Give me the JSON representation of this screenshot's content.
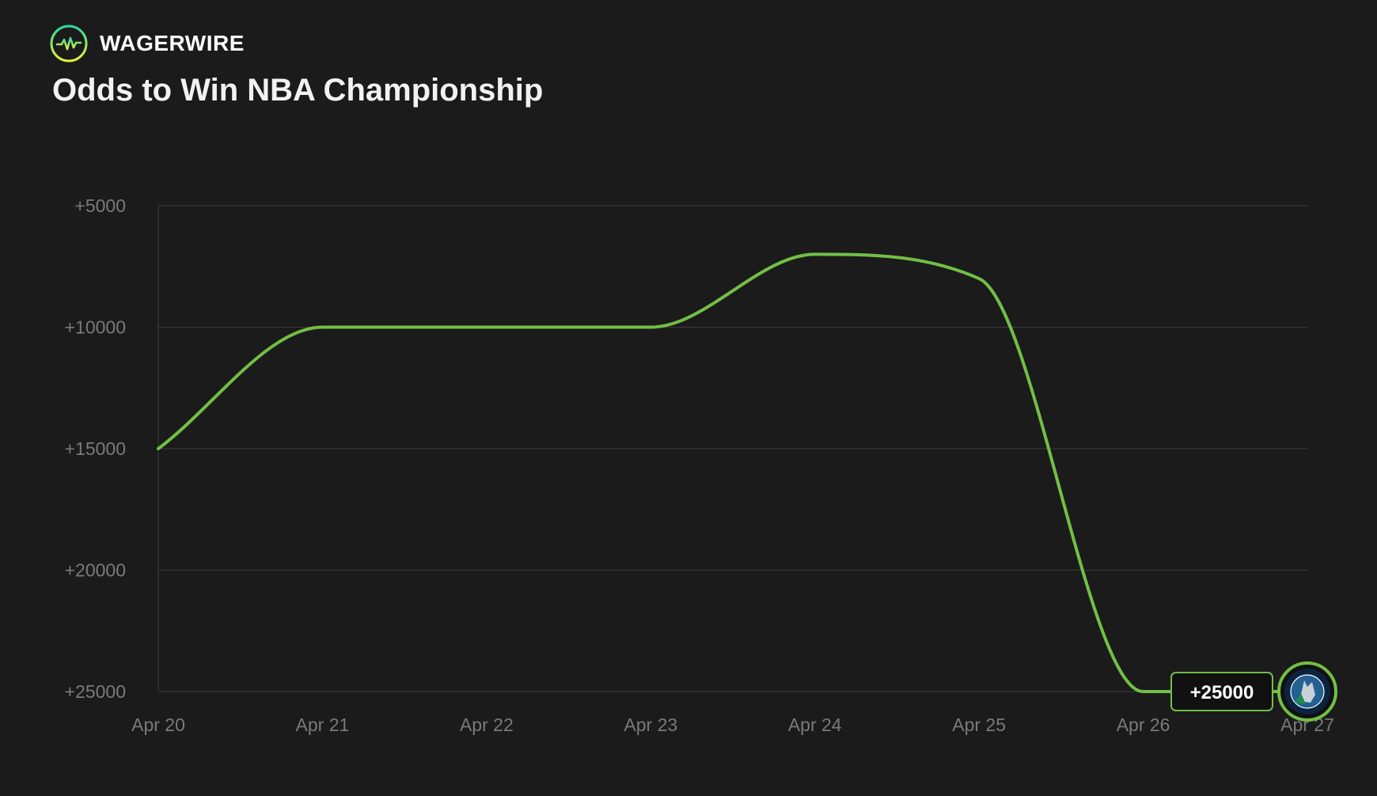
{
  "brand": {
    "name": "WAGERWIRE",
    "icon": "wagerwire-logo-icon"
  },
  "title": "Odds to Win NBA Championship",
  "colors": {
    "background": "#1b1b1b",
    "line": "#72bf44",
    "grid": "#3c3c3c",
    "tick": "#7a7a7a",
    "label_bg": "#111111",
    "team_navy": "#0c2340",
    "team_blue": "#236192"
  },
  "chart_data": {
    "type": "line",
    "title": "Odds to Win NBA Championship",
    "xlabel": "",
    "ylabel": "",
    "x": [
      "Apr 20",
      "Apr 21",
      "Apr 22",
      "Apr 23",
      "Apr 24",
      "Apr 25",
      "Apr 26",
      "Apr 27"
    ],
    "series": [
      {
        "values": [
          15000,
          10000,
          10000,
          10000,
          7000,
          8000,
          25000,
          25000
        ]
      }
    ],
    "y_ticks": [
      "+5000",
      "+10000",
      "+15000",
      "+20000",
      "+25000"
    ],
    "y_tick_values": [
      5000,
      10000,
      15000,
      20000,
      25000
    ],
    "ylim": [
      5000,
      25000
    ],
    "y_inverted": true,
    "grid": true,
    "legend": "none",
    "current_value_label": "+25000",
    "current_team_icon": "minnesota-timberwolves-logo-icon"
  }
}
